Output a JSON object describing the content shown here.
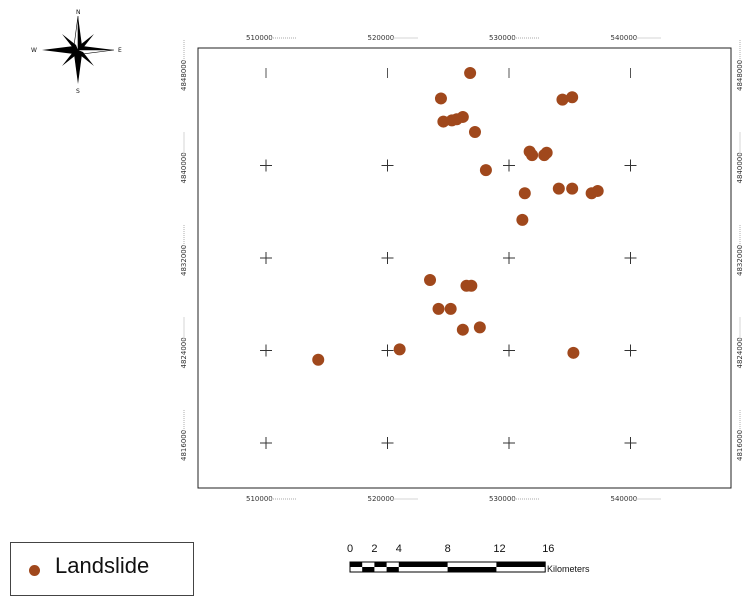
{
  "compass": {
    "north": "N",
    "south": "S",
    "east": "E",
    "west": "W"
  },
  "legend": {
    "label": "Landslide",
    "color": "#a0481c"
  },
  "grid": {
    "eastings": [
      "510000",
      "520000",
      "530000",
      "540000"
    ],
    "northings": [
      "4848000",
      "4840000",
      "4832000",
      "4824000",
      "4816000"
    ],
    "top_labels": [
      "510000",
      "520000",
      "530000",
      "540000"
    ],
    "bottom_labels": [
      "510000",
      "520000",
      "530000",
      "540000"
    ],
    "left_labels": [
      "4848000",
      "4840000",
      "4832000",
      "4824000",
      "4816000"
    ],
    "right_labels": [
      "4848000",
      "4840000",
      "4832000",
      "4824000",
      "4816000"
    ]
  },
  "scale_bar": {
    "numbers": [
      "0",
      "2",
      "4",
      "8",
      "12",
      "16"
    ],
    "unit": "Kilometers"
  },
  "landslides": [
    {
      "e": 526800,
      "n": 4848000
    },
    {
      "e": 524400,
      "n": 4845800
    },
    {
      "e": 534400,
      "n": 4845700
    },
    {
      "e": 535200,
      "n": 4845900
    },
    {
      "e": 524600,
      "n": 4843800
    },
    {
      "e": 525300,
      "n": 4843900
    },
    {
      "e": 525700,
      "n": 4844000
    },
    {
      "e": 526200,
      "n": 4844200
    },
    {
      "e": 527200,
      "n": 4842900
    },
    {
      "e": 531700,
      "n": 4841200
    },
    {
      "e": 531900,
      "n": 4840900
    },
    {
      "e": 532900,
      "n": 4840900
    },
    {
      "e": 533100,
      "n": 4841100
    },
    {
      "e": 528100,
      "n": 4839600
    },
    {
      "e": 531300,
      "n": 4837600
    },
    {
      "e": 534100,
      "n": 4838000
    },
    {
      "e": 535200,
      "n": 4838000
    },
    {
      "e": 536800,
      "n": 4837600
    },
    {
      "e": 537300,
      "n": 4837800
    },
    {
      "e": 531100,
      "n": 4835300
    },
    {
      "e": 523500,
      "n": 4830100
    },
    {
      "e": 526500,
      "n": 4829600
    },
    {
      "e": 526900,
      "n": 4829600
    },
    {
      "e": 524200,
      "n": 4827600
    },
    {
      "e": 525200,
      "n": 4827600
    },
    {
      "e": 526200,
      "n": 4825800
    },
    {
      "e": 527600,
      "n": 4826000
    },
    {
      "e": 521000,
      "n": 4824100
    },
    {
      "e": 514300,
      "n": 4823200
    },
    {
      "e": 535300,
      "n": 4823800
    }
  ]
}
